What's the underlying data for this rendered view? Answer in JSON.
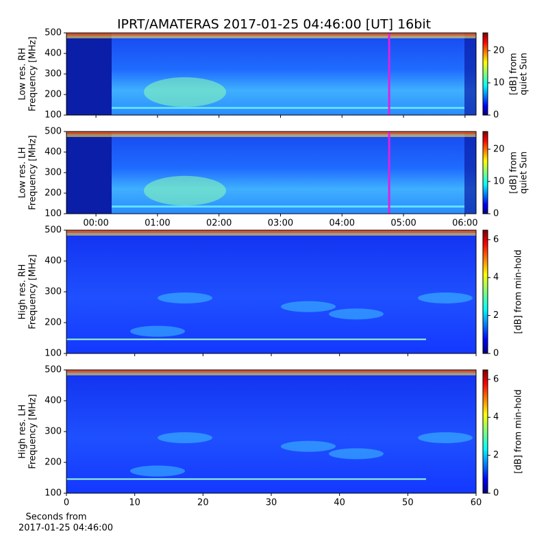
{
  "chart_data": [
    {
      "type": "heatmap",
      "title": "IPRT/AMATERAS 2017-01-25 04:46:00 [UT]   16bit",
      "ylabel": [
        "Low res. RH",
        "Frequency [MHz]"
      ],
      "xlim": [
        -0.48,
        6.18
      ],
      "ylim": [
        100,
        500
      ],
      "yticks": [
        100,
        200,
        300,
        400,
        500
      ],
      "marker_x": 4.767,
      "marker_color": "#e020e0",
      "colormap": "jet",
      "colorbar": {
        "label": [
          "[dB] from",
          "quiet Sun"
        ],
        "vlim": [
          0,
          25.5
        ],
        "ticks": [
          0,
          10,
          20
        ]
      }
    },
    {
      "type": "heatmap",
      "ylabel": [
        "Low res. LH",
        "Frequency [MHz]"
      ],
      "xlim": [
        -0.48,
        6.18
      ],
      "ylim": [
        100,
        500
      ],
      "yticks": [
        100,
        200,
        300,
        400,
        500
      ],
      "xticks": [
        {
          "value": 0,
          "label": "00:00"
        },
        {
          "value": 1,
          "label": "01:00"
        },
        {
          "value": 2,
          "label": "02:00"
        },
        {
          "value": 3,
          "label": "03:00"
        },
        {
          "value": 4,
          "label": "04:00"
        },
        {
          "value": 5,
          "label": "05:00"
        },
        {
          "value": 6,
          "label": "06:00"
        }
      ],
      "marker_x": 4.767,
      "marker_color": "#e020e0",
      "colormap": "jet",
      "colorbar": {
        "label": [
          "[dB] from",
          "quiet Sun"
        ],
        "vlim": [
          0,
          25.5
        ],
        "ticks": [
          0,
          10,
          20
        ]
      }
    },
    {
      "type": "heatmap",
      "ylabel": [
        "High res. RH",
        "Frequency [MHz]"
      ],
      "xlim": [
        0,
        60
      ],
      "ylim": [
        100,
        500
      ],
      "yticks": [
        100,
        200,
        300,
        400,
        500
      ],
      "colormap": "jet",
      "colorbar": {
        "label": [
          "[dB] from min-hold"
        ],
        "vlim": [
          0,
          6.5
        ],
        "ticks": [
          0,
          2,
          4,
          6
        ]
      }
    },
    {
      "type": "heatmap",
      "ylabel": [
        "High res. LH",
        "Frequency [MHz]"
      ],
      "xlabel": [
        "Seconds from",
        "2017-01-25 04:46:00"
      ],
      "xlim": [
        0,
        60
      ],
      "ylim": [
        100,
        500
      ],
      "yticks": [
        100,
        200,
        300,
        400,
        500
      ],
      "xticks": [
        0,
        10,
        20,
        30,
        40,
        50,
        60
      ],
      "colormap": "jet",
      "colorbar": {
        "label": [
          "[dB] from min-hold"
        ],
        "vlim": [
          0,
          6.5
        ],
        "ticks": [
          0,
          2,
          4,
          6
        ]
      }
    }
  ]
}
